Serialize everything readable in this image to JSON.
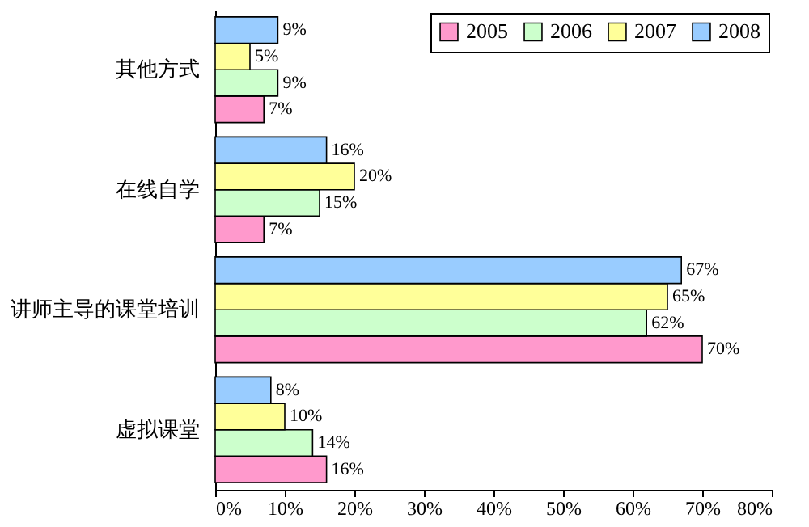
{
  "chart_data": {
    "type": "bar",
    "orientation": "horizontal",
    "categories": [
      "其他方式",
      "在线自学",
      "讲师主导的课堂培训",
      "虚拟课堂"
    ],
    "series": [
      {
        "name": "2005",
        "color": "#ff99cc",
        "values": [
          7,
          7,
          70,
          16
        ],
        "value_labels": [
          "7%",
          "7%",
          "70%",
          "16%"
        ]
      },
      {
        "name": "2006",
        "color": "#ccffcc",
        "values": [
          9,
          15,
          62,
          14
        ],
        "value_labels": [
          "9%",
          "15%",
          "62%",
          "14%"
        ]
      },
      {
        "name": "2007",
        "color": "#ffff99",
        "values": [
          5,
          20,
          65,
          10
        ],
        "value_labels": [
          "5%",
          "20%",
          "65%",
          "10%"
        ]
      },
      {
        "name": "2008",
        "color": "#99ccff",
        "values": [
          9,
          16,
          67,
          8
        ],
        "value_labels": [
          "9%",
          "16%",
          "67%",
          "8%"
        ]
      }
    ],
    "xlim": [
      0,
      80
    ],
    "xticks": [
      {
        "value": 0,
        "label": "0%"
      },
      {
        "value": 10,
        "label": "10%"
      },
      {
        "value": 20,
        "label": "20%"
      },
      {
        "value": 30,
        "label": "30%"
      },
      {
        "value": 40,
        "label": "40%"
      },
      {
        "value": 50,
        "label": "50%"
      },
      {
        "value": 60,
        "label": "60%"
      },
      {
        "value": 70,
        "label": "70%"
      },
      {
        "value": 80,
        "label": "80%"
      }
    ],
    "legend": "top right",
    "grid": false
  }
}
